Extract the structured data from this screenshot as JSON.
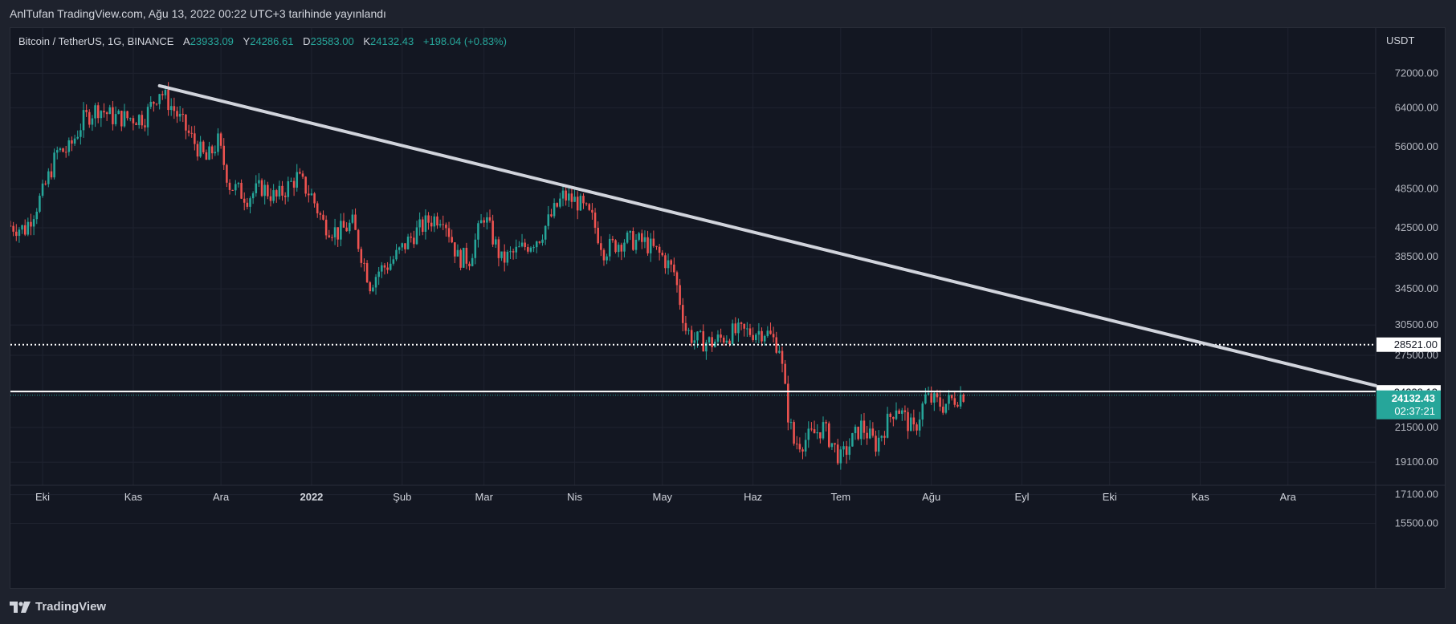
{
  "caption": "AnlTufan TradingView.com, Ağu 13, 2022 00:22 UTC+3 tarihinde yayınlandı",
  "footer": {
    "brand": "TradingView",
    "logo_icon": "tradingview-logo-icon"
  },
  "legend": {
    "symbol": "Bitcoin / TetherUS, 1G, BINANCE",
    "open_label": "A",
    "open": "23933.09",
    "high_label": "Y",
    "high": "24286.61",
    "low_label": "D",
    "low": "23583.00",
    "close_label": "K",
    "close": "24132.43",
    "change": "+198.04 (+0.83%)"
  },
  "colors": {
    "background": "#131722",
    "up": "#26a69a",
    "down": "#ef5350",
    "trendline": "#d1d4dc",
    "grid": "#1f2330",
    "price_badge": "#26a69a"
  },
  "chart_data": {
    "type": "candlestick",
    "title": "Bitcoin / TetherUS, 1G, BINANCE",
    "ylabel": "USDT",
    "y_scale": "log",
    "ylim": [
      13800,
      84000
    ],
    "x_tick_labels": [
      "Eki",
      "Kas",
      "Ara",
      "2022",
      "Şub",
      "Mar",
      "Nis",
      "May",
      "Haz",
      "Tem",
      "Ağu",
      "Eyl",
      "Eki",
      "Kas",
      "Ara"
    ],
    "y_tick_labels": [
      "72000.00",
      "64000.00",
      "56000.00",
      "48500.00",
      "42500.00",
      "38500.00",
      "34500.00",
      "30500.00",
      "27500.00",
      "21500.00",
      "19100.00",
      "17100.00",
      "15500.00"
    ],
    "y_ticks": [
      72000,
      64000,
      56000,
      48500,
      42500,
      38500,
      34500,
      30500,
      27500,
      21500,
      19100,
      17100,
      15500
    ],
    "price_series": {
      "name": "BTCUSDT daily close (approx.)",
      "x": [
        "2021-09-20",
        "2021-09-25",
        "2021-10-01",
        "2021-10-06",
        "2021-10-10",
        "2021-10-15",
        "2021-10-20",
        "2021-10-25",
        "2021-10-30",
        "2021-11-05",
        "2021-11-10",
        "2021-11-15",
        "2021-11-20",
        "2021-11-26",
        "2021-11-30",
        "2021-12-04",
        "2021-12-10",
        "2021-12-15",
        "2021-12-20",
        "2021-12-27",
        "2022-01-01",
        "2022-01-05",
        "2022-01-10",
        "2022-01-15",
        "2022-01-21",
        "2022-01-24",
        "2022-01-28",
        "2022-02-05",
        "2022-02-10",
        "2022-02-15",
        "2022-02-20",
        "2022-02-24",
        "2022-03-01",
        "2022-03-07",
        "2022-03-14",
        "2022-03-20",
        "2022-03-28",
        "2022-04-02",
        "2022-04-07",
        "2022-04-11",
        "2022-04-18",
        "2022-04-25",
        "2022-05-01",
        "2022-05-05",
        "2022-05-09",
        "2022-05-12",
        "2022-05-18",
        "2022-05-25",
        "2022-06-01",
        "2022-06-05",
        "2022-06-10",
        "2022-06-13",
        "2022-06-15",
        "2022-06-18",
        "2022-06-25",
        "2022-07-01",
        "2022-07-08",
        "2022-07-13",
        "2022-07-20",
        "2022-07-26",
        "2022-07-30",
        "2022-08-05",
        "2022-08-10",
        "2022-08-12"
      ],
      "close": [
        42800,
        42300,
        47800,
        55000,
        55500,
        61500,
        64000,
        62000,
        61800,
        62000,
        68000,
        63500,
        58500,
        53500,
        57000,
        49200,
        47200,
        48800,
        47000,
        50500,
        47400,
        43200,
        41800,
        43100,
        35100,
        36700,
        37700,
        41600,
        43500,
        44500,
        38400,
        38300,
        44400,
        38000,
        39600,
        41300,
        47300,
        46400,
        43700,
        39400,
        40800,
        40400,
        38500,
        36500,
        30100,
        29000,
        28700,
        29700,
        29800,
        29900,
        28400,
        22500,
        20400,
        20500,
        21500,
        19300,
        21600,
        20300,
        23200,
        21200,
        23800,
        23200,
        23900,
        24132
      ]
    },
    "trendline": {
      "from": {
        "x": "2021-11-10",
        "y": 69000
      },
      "to": {
        "x": "2022-12-31",
        "y": 24800
      }
    },
    "horizontal_levels": [
      {
        "price": 28521,
        "label": "28521.00",
        "style": "dotted"
      },
      {
        "price": 24238.12,
        "label": "24238.12",
        "style": "solid"
      }
    ],
    "last_price": {
      "price": 24132.43,
      "label": "24132.43",
      "countdown": "02:37:21"
    }
  }
}
